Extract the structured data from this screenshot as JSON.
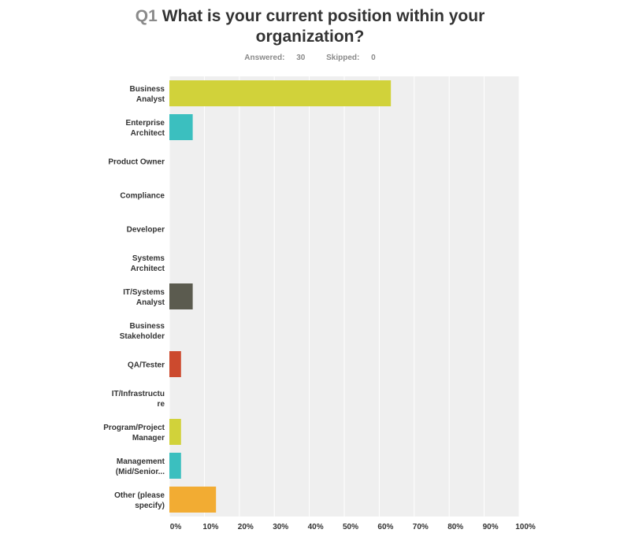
{
  "question": {
    "number": "Q1",
    "text_line1": "What is your current position within your",
    "text_line2": "organization?"
  },
  "stats": {
    "answered_label": "Answered:",
    "answered": "30",
    "skipped_label": "Skipped:",
    "skipped": "0"
  },
  "chart_data": {
    "type": "bar",
    "orientation": "horizontal",
    "categories": [
      [
        "Business",
        "Analyst"
      ],
      [
        "Enterprise",
        "Architect"
      ],
      [
        "Product Owner"
      ],
      [
        "Compliance"
      ],
      [
        "Developer"
      ],
      [
        "Systems",
        "Architect"
      ],
      [
        "IT/Systems",
        "Analyst"
      ],
      [
        "Business",
        "Stakeholder"
      ],
      [
        "QA/Tester"
      ],
      [
        "IT/Infrastructu",
        "re"
      ],
      [
        "Program/Project",
        "Manager"
      ],
      [
        "Management",
        "(Mid/Senior..."
      ],
      [
        "Other (please",
        "specify)"
      ]
    ],
    "values": [
      63.33,
      6.67,
      0,
      0,
      0,
      0,
      6.67,
      0,
      3.33,
      0,
      3.33,
      3.33,
      13.33
    ],
    "colors": [
      "#d1d23a",
      "#3bbfbf",
      "#d1d23a",
      "#3bbfbf",
      "#d1d23a",
      "#3bbfbf",
      "#5b5b4f",
      "#d1d23a",
      "#cc4a2e",
      "#3bbfbf",
      "#d1d23a",
      "#3bbfbf",
      "#f2ac33"
    ],
    "xlim": [
      0,
      100
    ],
    "ticks": [
      "0%",
      "10%",
      "20%",
      "30%",
      "40%",
      "50%",
      "60%",
      "70%",
      "80%",
      "90%",
      "100%"
    ],
    "grid": true,
    "background": "#efefef",
    "gridline_color": "#ffffff"
  }
}
